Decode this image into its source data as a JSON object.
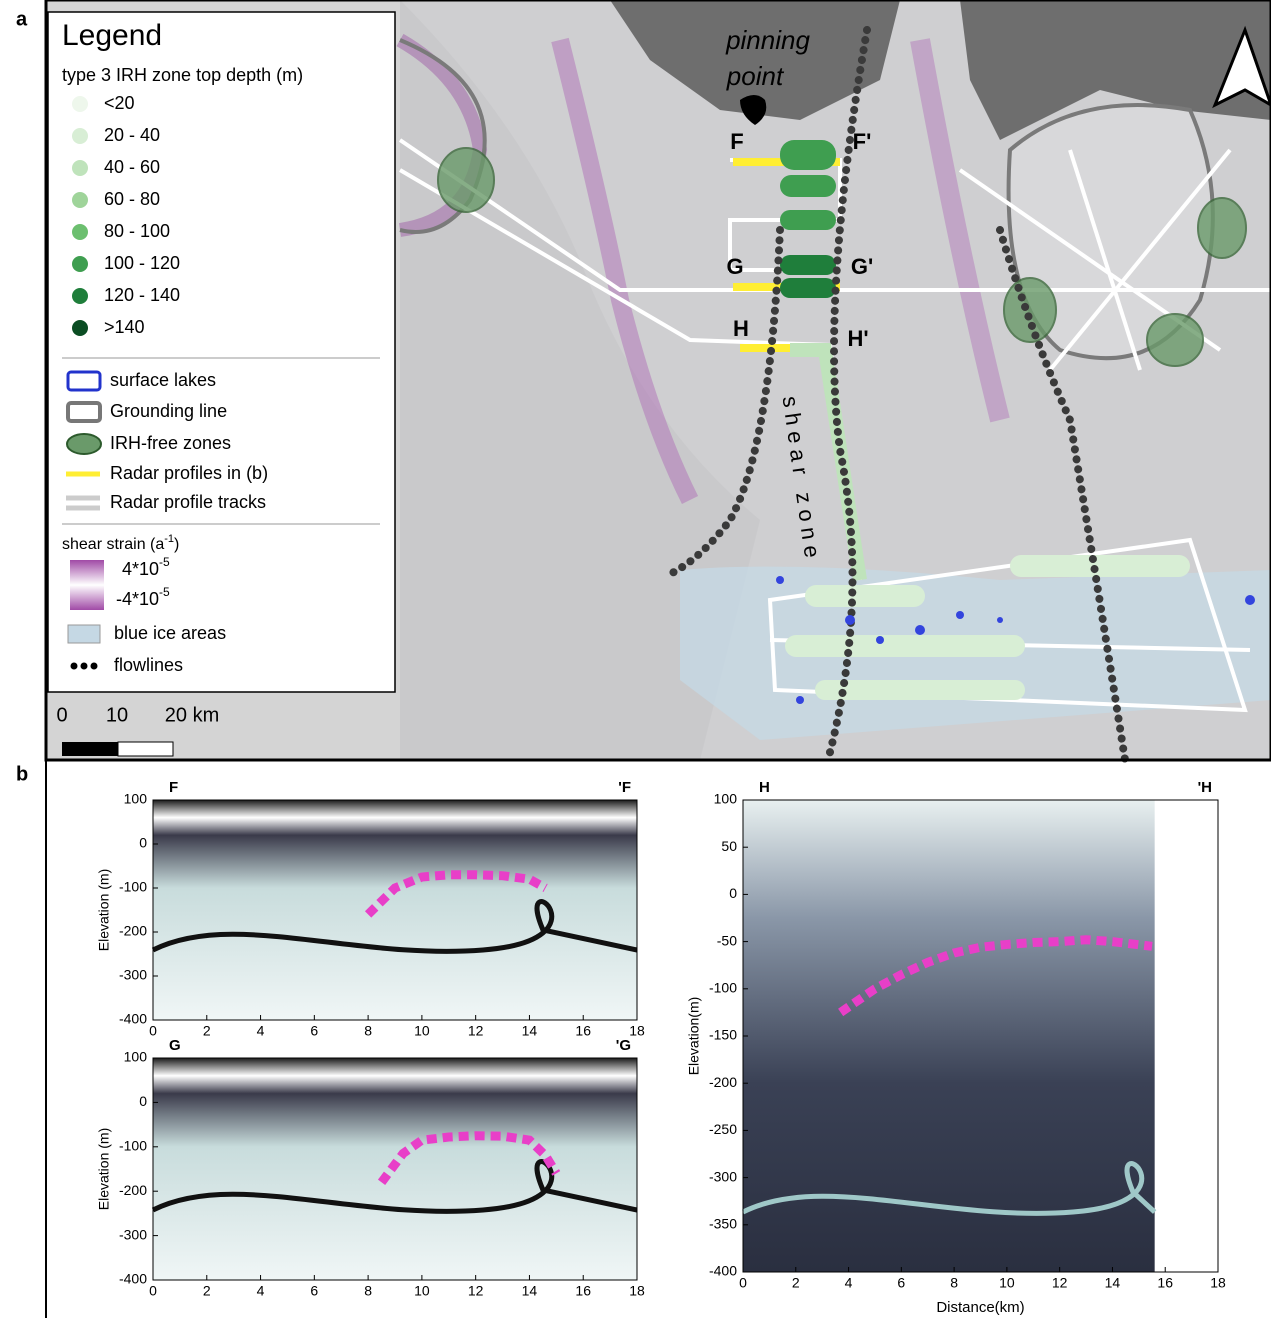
{
  "panel_a": {
    "label": "a",
    "legend": {
      "title": "Legend",
      "depth_title": "type 3 IRH zone top depth (m)",
      "depth_classes": [
        {
          "label": "<20",
          "color": "#eef7ec"
        },
        {
          "label": "20 - 40",
          "color": "#d8eed5"
        },
        {
          "label": "40 - 60",
          "color": "#bfe3bb"
        },
        {
          "label": "60 - 80",
          "color": "#9fd49a"
        },
        {
          "label": "80 - 100",
          "color": "#6cbf6f"
        },
        {
          "label": "100 - 120",
          "color": "#3f9e50"
        },
        {
          "label": "120 - 140",
          "color": "#1f7e3b"
        },
        {
          "label": ">140",
          "color": "#0b4d23"
        }
      ],
      "surface_lakes": "surface lakes",
      "grounding_line": "Grounding line",
      "irh_free": "IRH-free zones",
      "radar_profiles": "Radar profiles in (b)",
      "radar_tracks": "Radar profile tracks",
      "strain_title": "shear strain (a",
      "strain_unit_sup": "-1",
      "strain_close": ")",
      "strain_high": "4*10",
      "strain_high_sup": "-5",
      "strain_low": "-4*10",
      "strain_low_sup": "-5",
      "blue_ice": "blue ice areas",
      "flowlines": "flowlines"
    },
    "scale_bar": [
      "0",
      "10",
      "20 km"
    ],
    "map_labels": {
      "pinning_1": "pinning",
      "pinning_2": "point",
      "F": "F",
      "F_prime": "F'",
      "G": "G",
      "G_prime": "G'",
      "H": "H",
      "H_prime": "H'",
      "shear_zone": "shear zone"
    }
  },
  "panel_b": {
    "label": "b"
  },
  "chart_data": [
    {
      "type": "line",
      "title": "F",
      "title_right": "'F",
      "ylabel": "Elevation (m)",
      "xlim": [
        0,
        18
      ],
      "ylim": [
        -400,
        100
      ],
      "xticks": [
        0,
        2,
        4,
        6,
        8,
        10,
        12,
        14,
        16,
        18
      ],
      "yticks": [
        -400,
        -300,
        -200,
        -100,
        0,
        100
      ],
      "series": [
        {
          "color": "#e83fc8",
          "x": [
            8,
            9,
            10,
            11,
            12,
            13,
            14,
            14.6
          ],
          "values": [
            -160,
            -100,
            -75,
            -70,
            -70,
            -72,
            -80,
            -100
          ]
        }
      ]
    },
    {
      "type": "line",
      "title": "G",
      "title_right": "'G",
      "ylabel": "Elevation (m)",
      "xlim": [
        0,
        18
      ],
      "ylim": [
        -400,
        100
      ],
      "xticks": [
        0,
        2,
        4,
        6,
        8,
        10,
        12,
        14,
        16,
        18
      ],
      "yticks": [
        -400,
        -300,
        -200,
        -100,
        0,
        100
      ],
      "series": [
        {
          "color": "#e83fc8",
          "x": [
            8.5,
            9.3,
            10,
            11,
            12,
            13,
            14,
            14.6,
            15
          ],
          "values": [
            -180,
            -115,
            -85,
            -78,
            -75,
            -76,
            -85,
            -120,
            -160
          ]
        }
      ]
    },
    {
      "type": "line",
      "title": "H",
      "title_right": "'H",
      "ylabel": "Elevation(m)",
      "xlabel": "Distance(km)",
      "xlim": [
        0,
        18
      ],
      "ylim": [
        -400,
        100
      ],
      "xticks": [
        0,
        2,
        4,
        6,
        8,
        10,
        12,
        14,
        16,
        18
      ],
      "yticks": [
        -400,
        -350,
        -300,
        -250,
        -200,
        -150,
        -100,
        -50,
        0,
        50,
        100
      ],
      "series": [
        {
          "color": "#e83fc8",
          "x": [
            3.7,
            5,
            6,
            7,
            8,
            9,
            10,
            11,
            12,
            13,
            14,
            15.5
          ],
          "values": [
            -125,
            -100,
            -85,
            -72,
            -62,
            -56,
            -53,
            -51,
            -50,
            -48,
            -50,
            -55
          ]
        }
      ]
    }
  ]
}
